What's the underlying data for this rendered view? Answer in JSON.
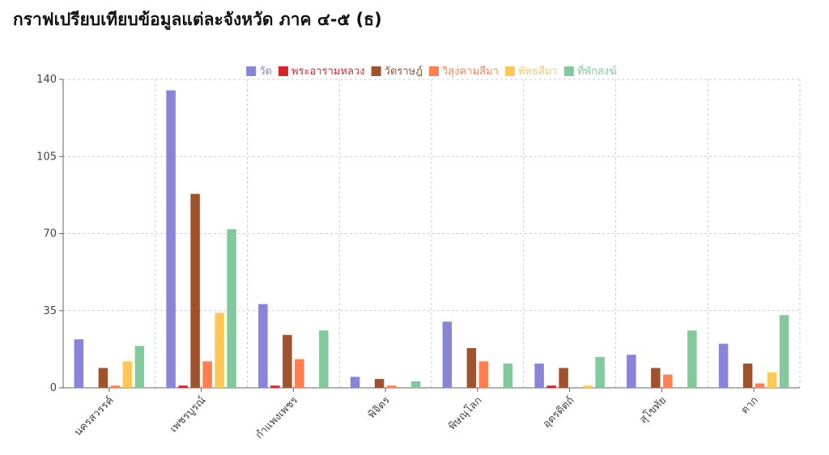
{
  "page": {
    "title": "กราฟเปรียบเทียบข้อมูลแต่ละจังหวัด ภาค ๔-๕ (ธ)"
  },
  "chart_data": {
    "type": "bar",
    "title": "",
    "xlabel": "",
    "ylabel": "",
    "ylim": [
      0,
      140
    ],
    "yticks": [
      0,
      35,
      70,
      105,
      140
    ],
    "grid": true,
    "legend_position": "top-center",
    "categories": [
      "นครสวรรค์",
      "เพชรบูรณ์",
      "กำแพงเพชร",
      "พิจิตร",
      "พิษณุโลก",
      "อุตรดิตถ์",
      "สุโขทัย",
      "ตาก"
    ],
    "series": [
      {
        "name": "วัด",
        "color": "#8884d8",
        "values": [
          22,
          135,
          38,
          5,
          30,
          11,
          15,
          20
        ]
      },
      {
        "name": "พระอารามหลวง",
        "color": "#d62728",
        "values": [
          0,
          1,
          1,
          0,
          0,
          1,
          0,
          0
        ]
      },
      {
        "name": "วัดราษฎ์",
        "color": "#a0522d",
        "values": [
          9,
          88,
          24,
          4,
          18,
          9,
          9,
          11
        ]
      },
      {
        "name": "วิสุงคามสีมา",
        "color": "#ff7f50",
        "values": [
          1,
          12,
          13,
          1,
          12,
          0,
          6,
          2
        ]
      },
      {
        "name": "พัทธสีมา",
        "color": "#ffc658",
        "values": [
          12,
          34,
          0,
          0,
          0,
          1,
          0,
          7
        ]
      },
      {
        "name": "ที่พักสงฆ์",
        "color": "#82ca9d",
        "values": [
          19,
          72,
          26,
          3,
          11,
          14,
          26,
          33
        ]
      }
    ]
  }
}
